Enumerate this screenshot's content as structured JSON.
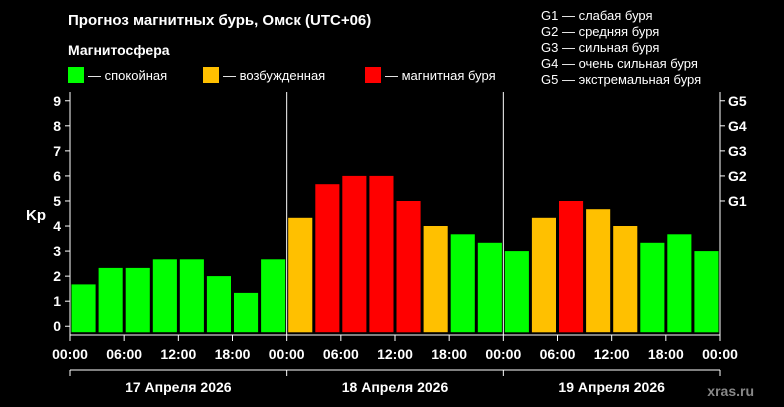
{
  "title": "Прогноз магнитных бурь, Омск (UTC+06)",
  "subtitle": "Магнитосфера",
  "legend": [
    {
      "label": "— спокойная",
      "color": "#00ff00"
    },
    {
      "label": "— возбужденная",
      "color": "#ffc000"
    },
    {
      "label": "— магнитная буря",
      "color": "#ff0000"
    }
  ],
  "g_scale": [
    "G1 — слабая буря",
    "G2 — средняя буря",
    "G3 — сильная буря",
    "G4 — очень сильная буря",
    "G5 — экстремальная буря"
  ],
  "brand": "xras.ru",
  "colors": {
    "quiet": "#00ff00",
    "active": "#ffc000",
    "storm": "#ff0000"
  },
  "chart_data": {
    "type": "bar",
    "ylabel": "Kp",
    "ylim": [
      0,
      9
    ],
    "y_ticks": [
      "0",
      "1",
      "2",
      "3",
      "4",
      "5",
      "6",
      "7",
      "8",
      "9"
    ],
    "right_ticks": [
      {
        "label": "G1",
        "kp": 5
      },
      {
        "label": "G2",
        "kp": 6
      },
      {
        "label": "G3",
        "kp": 7
      },
      {
        "label": "G4",
        "kp": 8
      },
      {
        "label": "G5",
        "kp": 9
      }
    ],
    "x_tick_labels": [
      "00:00",
      "06:00",
      "12:00",
      "18:00",
      "00:00",
      "06:00",
      "12:00",
      "18:00",
      "00:00",
      "06:00",
      "12:00",
      "18:00",
      "00:00"
    ],
    "days": [
      "17 Апреля 2026",
      "18 Апреля 2026",
      "19 Апреля 2026"
    ],
    "values": [
      1.67,
      2.33,
      2.33,
      2.67,
      2.67,
      2.0,
      1.33,
      2.67,
      4.33,
      5.67,
      6.0,
      6.0,
      5.0,
      4.0,
      3.67,
      3.33,
      3.0,
      4.33,
      5.0,
      4.67,
      4.0,
      3.33,
      3.67,
      3.0
    ],
    "levels": [
      "quiet",
      "quiet",
      "quiet",
      "quiet",
      "quiet",
      "quiet",
      "quiet",
      "quiet",
      "active",
      "storm",
      "storm",
      "storm",
      "storm",
      "active",
      "quiet",
      "quiet",
      "quiet",
      "active",
      "storm",
      "active",
      "active",
      "quiet",
      "quiet",
      "quiet"
    ]
  }
}
